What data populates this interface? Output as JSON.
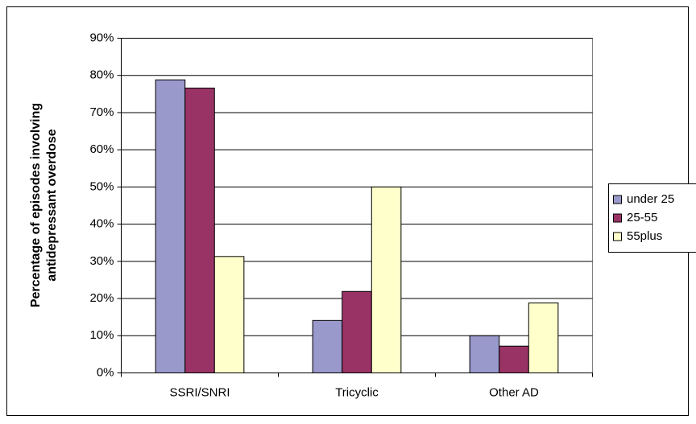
{
  "chart_data": {
    "type": "bar",
    "y_label": [
      "Percentage of episodes involving",
      "antidepressant overdose"
    ],
    "categories": [
      "SSRI/SNRI",
      "Tricyclic",
      "Other AD"
    ],
    "series": [
      {
        "name": "under 25",
        "color": "#9999cc",
        "values": [
          78.8,
          14.1,
          10
        ]
      },
      {
        "name": "25-55",
        "color": "#993366",
        "values": [
          76.6,
          21.9,
          7.2
        ]
      },
      {
        "name": "55plus",
        "color": "#ffffcc",
        "values": [
          31.3,
          50,
          18.8
        ]
      }
    ],
    "ylim": [
      0,
      90
    ],
    "yticks": [
      {
        "value": 0,
        "label": "0%"
      },
      {
        "value": 10,
        "label": "10%"
      },
      {
        "value": 20,
        "label": "20%"
      },
      {
        "value": 30,
        "label": "30%"
      },
      {
        "value": 40,
        "label": "40%"
      },
      {
        "value": 50,
        "label": "50%"
      },
      {
        "value": 60,
        "label": "60%"
      },
      {
        "value": 70,
        "label": "70%"
      },
      {
        "value": 80,
        "label": "80%"
      },
      {
        "value": 90,
        "label": "90%"
      }
    ],
    "grid": true,
    "legend": "right"
  }
}
